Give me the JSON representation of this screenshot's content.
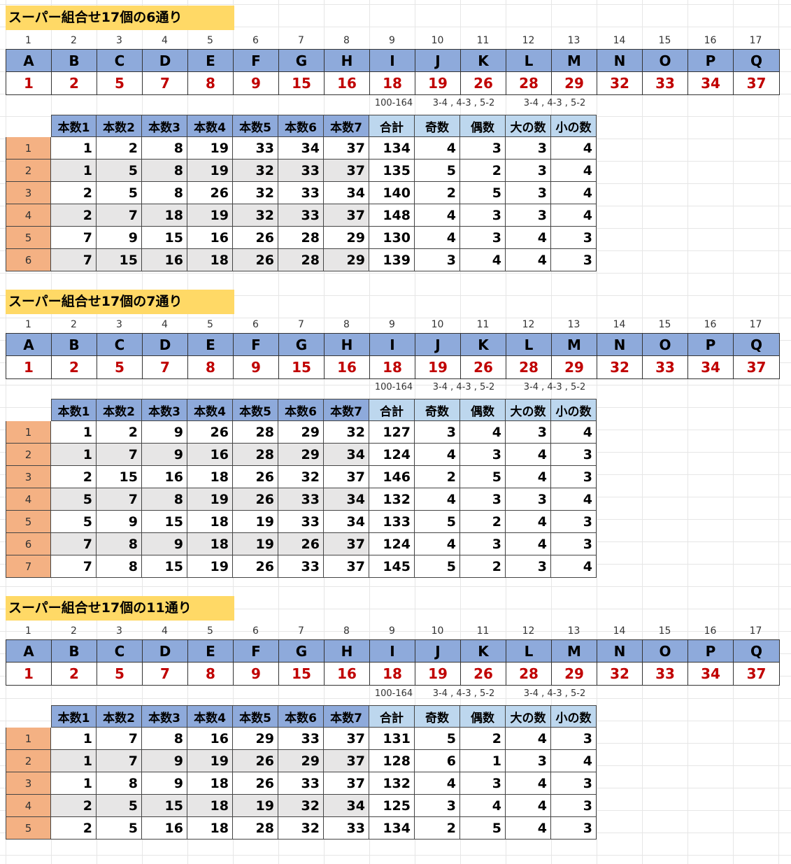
{
  "column_indices": [
    "1",
    "2",
    "3",
    "4",
    "5",
    "6",
    "7",
    "8",
    "9",
    "10",
    "11",
    "12",
    "13",
    "14",
    "15",
    "16",
    "17"
  ],
  "letters": [
    "A",
    "B",
    "C",
    "D",
    "E",
    "F",
    "G",
    "H",
    "I",
    "J",
    "K",
    "L",
    "M",
    "N",
    "O",
    "P",
    "Q"
  ],
  "numbers": [
    "1",
    "2",
    "5",
    "7",
    "8",
    "9",
    "15",
    "16",
    "18",
    "19",
    "26",
    "28",
    "29",
    "32",
    "33",
    "34",
    "37"
  ],
  "notes": {
    "sum_range": "100-164",
    "odd_even": "3-4 , 4-3 , 5-2",
    "big_small": "3-4 , 4-3 , 5-2"
  },
  "headers": [
    "本数1",
    "本数2",
    "本数3",
    "本数4",
    "本数5",
    "本数6",
    "本数7",
    "合計",
    "奇数",
    "偶数",
    "大の数",
    "小の数"
  ],
  "sections": [
    {
      "title": "スーパー組合せ17個の6通り",
      "rows": [
        [
          "1",
          "1",
          "2",
          "8",
          "19",
          "33",
          "34",
          "37",
          "134",
          "4",
          "3",
          "3",
          "4"
        ],
        [
          "2",
          "1",
          "5",
          "8",
          "19",
          "32",
          "33",
          "37",
          "135",
          "5",
          "2",
          "3",
          "4"
        ],
        [
          "3",
          "2",
          "5",
          "8",
          "26",
          "32",
          "33",
          "34",
          "140",
          "2",
          "5",
          "3",
          "4"
        ],
        [
          "4",
          "2",
          "7",
          "18",
          "19",
          "32",
          "33",
          "37",
          "148",
          "4",
          "3",
          "3",
          "4"
        ],
        [
          "5",
          "7",
          "9",
          "15",
          "16",
          "26",
          "28",
          "29",
          "130",
          "4",
          "3",
          "4",
          "3"
        ],
        [
          "6",
          "7",
          "15",
          "16",
          "18",
          "26",
          "28",
          "29",
          "139",
          "3",
          "4",
          "4",
          "3"
        ]
      ]
    },
    {
      "title": "スーパー組合せ17個の7通り",
      "rows": [
        [
          "1",
          "1",
          "2",
          "9",
          "26",
          "28",
          "29",
          "32",
          "127",
          "3",
          "4",
          "3",
          "4"
        ],
        [
          "2",
          "1",
          "7",
          "9",
          "16",
          "28",
          "29",
          "34",
          "124",
          "4",
          "3",
          "4",
          "3"
        ],
        [
          "3",
          "2",
          "15",
          "16",
          "18",
          "26",
          "32",
          "37",
          "146",
          "2",
          "5",
          "4",
          "3"
        ],
        [
          "4",
          "5",
          "7",
          "8",
          "19",
          "26",
          "33",
          "34",
          "132",
          "4",
          "3",
          "3",
          "4"
        ],
        [
          "5",
          "5",
          "9",
          "15",
          "18",
          "19",
          "33",
          "34",
          "133",
          "5",
          "2",
          "4",
          "3"
        ],
        [
          "6",
          "7",
          "8",
          "9",
          "18",
          "19",
          "26",
          "37",
          "124",
          "4",
          "3",
          "4",
          "3"
        ],
        [
          "7",
          "7",
          "8",
          "15",
          "19",
          "26",
          "33",
          "37",
          "145",
          "5",
          "2",
          "3",
          "4"
        ]
      ]
    },
    {
      "title": "スーパー組合せ17個の11通り",
      "rows": [
        [
          "1",
          "1",
          "7",
          "8",
          "16",
          "29",
          "33",
          "37",
          "131",
          "5",
          "2",
          "4",
          "3"
        ],
        [
          "2",
          "1",
          "7",
          "9",
          "19",
          "26",
          "29",
          "37",
          "128",
          "6",
          "1",
          "3",
          "4"
        ],
        [
          "3",
          "1",
          "8",
          "9",
          "18",
          "26",
          "33",
          "37",
          "132",
          "4",
          "3",
          "4",
          "3"
        ],
        [
          "4",
          "2",
          "5",
          "15",
          "18",
          "19",
          "32",
          "34",
          "125",
          "3",
          "4",
          "4",
          "3"
        ],
        [
          "5",
          "2",
          "5",
          "16",
          "18",
          "28",
          "32",
          "33",
          "134",
          "2",
          "5",
          "4",
          "3"
        ]
      ]
    }
  ]
}
